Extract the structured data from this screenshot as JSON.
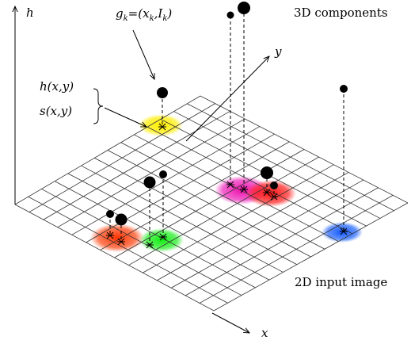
{
  "labels": {
    "axis_h": "h",
    "axis_y": "y",
    "axis_x": "x",
    "components_3d": "3D components",
    "input_2d": "2D input image",
    "g_k": "g",
    "g_k_sub": "k",
    "g_k_eq": "=(x",
    "g_k_sub2": "k",
    "g_k_comma": ",I",
    "g_k_sub3": "k",
    "g_k_close": ")",
    "h_xy": "h(x,y)",
    "s_xy": "s(x,y)"
  },
  "colors": {
    "yellow": "#ffee00",
    "magenta": "#ee22bb",
    "red": "#ff2222",
    "orange_red": "#ff4411",
    "green": "#22ee22",
    "blue": "#2266ff",
    "grid": "#333333"
  }
}
